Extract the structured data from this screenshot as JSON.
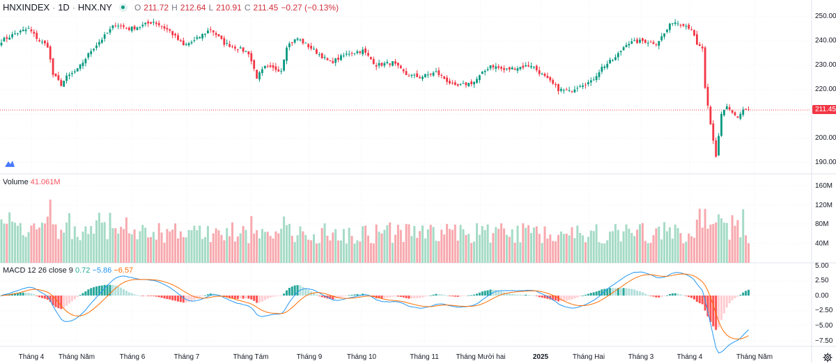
{
  "header": {
    "symbol": "HNXINDEX",
    "interval": "1D",
    "exchange": "HNX.NY",
    "open_label": "O",
    "open": "211.72",
    "high_label": "H",
    "high": "212.64",
    "low_label": "L",
    "low": "210.91",
    "close_label": "C",
    "close": "211.45",
    "change": "−0.27 (−0.13%)"
  },
  "price_axis": {
    "ticks": [
      "250.00",
      "240.00",
      "230.00",
      "220.00",
      "200.00",
      "190.00"
    ],
    "last_price": "211.45"
  },
  "volume": {
    "title": "Volume",
    "value": "41.061M",
    "ticks": [
      "160M",
      "120M",
      "80M",
      "40M"
    ]
  },
  "macd": {
    "title": "MACD 12 26 close 9",
    "hist": "0.72",
    "macd": "−5.86",
    "signal": "−6.57",
    "ticks": [
      "5.00",
      "2.50",
      "0.00",
      "−2.50",
      "−5.00",
      "−7.50"
    ]
  },
  "time_axis": [
    "Tháng 4",
    "Tháng Năm",
    "Tháng 6",
    "Tháng 7",
    "Tháng Tám",
    "Tháng 9",
    "Tháng 10",
    "Tháng 11",
    "Tháng Mười hai",
    "2025",
    "Tháng Hai",
    "Tháng 3",
    "Tháng 4",
    "Tháng Năm"
  ],
  "colors": {
    "up": "#089981",
    "down": "#f23645",
    "macd": "#2196f3",
    "signal": "#ff6d00"
  },
  "chart_data": {
    "type": "candlestick",
    "bars": 276,
    "close_keypoints": [
      [
        0,
        240
      ],
      [
        5,
        243
      ],
      [
        10,
        245
      ],
      [
        14,
        240
      ],
      [
        17,
        238
      ],
      [
        19,
        226
      ],
      [
        22,
        222
      ],
      [
        24,
        225
      ],
      [
        28,
        228
      ],
      [
        33,
        236
      ],
      [
        38,
        242
      ],
      [
        42,
        247
      ],
      [
        47,
        245
      ],
      [
        51,
        246
      ],
      [
        56,
        248
      ],
      [
        62,
        244
      ],
      [
        67,
        238
      ],
      [
        71,
        240
      ],
      [
        77,
        245
      ],
      [
        82,
        239
      ],
      [
        87,
        237
      ],
      [
        91,
        235
      ],
      [
        94,
        225
      ],
      [
        97,
        229
      ],
      [
        103,
        228
      ],
      [
        105,
        238
      ],
      [
        109,
        241
      ],
      [
        114,
        237
      ],
      [
        121,
        231
      ],
      [
        128,
        235
      ],
      [
        133,
        236
      ],
      [
        138,
        230
      ],
      [
        144,
        231
      ],
      [
        149,
        226
      ],
      [
        154,
        225
      ],
      [
        160,
        227
      ],
      [
        167,
        221
      ],
      [
        174,
        223
      ],
      [
        180,
        230
      ],
      [
        185,
        228
      ],
      [
        195,
        230
      ],
      [
        200,
        225
      ],
      [
        205,
        220
      ],
      [
        209,
        219
      ],
      [
        213,
        222
      ],
      [
        217,
        223
      ],
      [
        221,
        229
      ],
      [
        226,
        233
      ],
      [
        230,
        239
      ],
      [
        236,
        240
      ],
      [
        241,
        239
      ],
      [
        244,
        243
      ],
      [
        247,
        248
      ],
      [
        251,
        247
      ],
      [
        254,
        245
      ],
      [
        256,
        238
      ],
      [
        258,
        237
      ],
      [
        259,
        220
      ],
      [
        261,
        205
      ],
      [
        263,
        192
      ],
      [
        265,
        210
      ],
      [
        267,
        213
      ],
      [
        269,
        210
      ],
      [
        271,
        208
      ],
      [
        273,
        211
      ],
      [
        275,
        211.45
      ]
    ],
    "price_range": [
      186,
      253
    ],
    "volume_range": [
      0,
      170
    ],
    "macd_range": [
      -8.4,
      5.2
    ]
  }
}
